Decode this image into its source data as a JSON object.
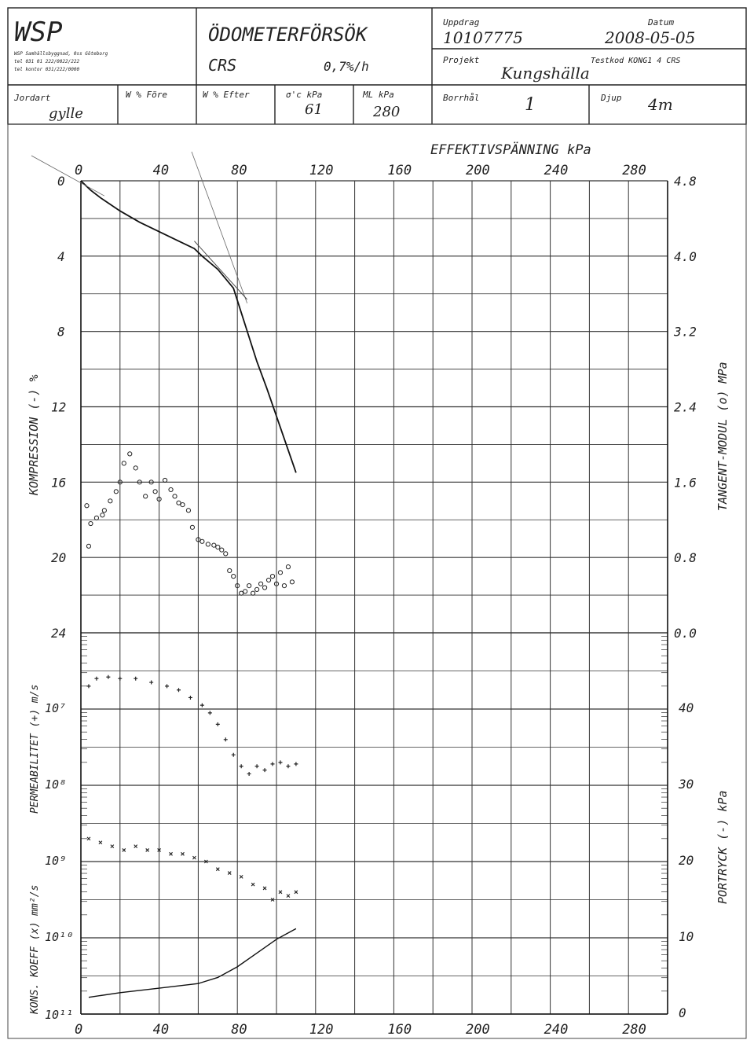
{
  "header": {
    "company": "WSP",
    "company_address": [
      "WSP Samhällsbyggnad, 0ss Göteborg",
      "tel 031 01 222/0022/222",
      "tel kontor 031/222/0000"
    ],
    "title": "ÖDOMETERFÖRSÖK",
    "method": "CRS",
    "rate": "0,7%/h",
    "uppdrag_label": "Uppdrag",
    "uppdrag_value": "10107775",
    "datum_label": "Datum",
    "datum_value": "2008-05-05",
    "projekt_label": "Projekt",
    "projekt_value": "Kungshälla",
    "testkod_label": "Testkod KONG1 4 CRS",
    "jordart_label": "Jordart",
    "jordart_value": "gylle",
    "w_fore_label": "W % Före",
    "w_efter_label": "W % Efter",
    "sigma_label": "σ'c  kPa",
    "sigma_value": "61",
    "ml_label": "ML  kPa",
    "ml_value": "280",
    "borrhal_label": "Borrhål",
    "borrhal_value": "1",
    "djup_label": "Djup",
    "djup_value": "4m"
  },
  "chart_data": {
    "type": "line",
    "top_axis_title": "EFFEKTIVSPÄNNING kPa",
    "x_ticks": [
      "0",
      "40",
      "80",
      "120",
      "160",
      "200",
      "240",
      "280"
    ],
    "xlim": [
      0,
      300
    ],
    "left_axis_compression_label": "KOMPRESSION (-) %",
    "left_compression_ticks": [
      "0",
      "4",
      "8",
      "12",
      "16",
      "20",
      "24"
    ],
    "right_axis_modulus_label": "TANGENT-MODUL (o) MPa",
    "right_modulus_ticks": [
      "4.8",
      "4.0",
      "3.2",
      "2.4",
      "1.6",
      "0.8",
      "0.0"
    ],
    "left_axis_permeability_label": "PERMEABILITET (+) m/s",
    "left_axis_consolidation_label": "KONS. KOEFF (x) mm²/s",
    "left_log_ticks": [
      "10⁷",
      "10⁸",
      "10⁹",
      "10¹⁰",
      "10¹¹"
    ],
    "right_axis_pore_label": "PORTRYCK (-) kPa",
    "right_pore_ticks": [
      "40",
      "30",
      "20",
      "10",
      "0"
    ],
    "series": [
      {
        "name": "compression",
        "x": [
          0,
          2,
          5,
          10,
          20,
          30,
          40,
          50,
          58,
          62,
          70,
          78,
          82,
          86,
          90,
          95,
          100,
          105,
          110
        ],
        "y": [
          0,
          0.2,
          0.5,
          0.9,
          1.6,
          2.2,
          2.7,
          3.2,
          3.6,
          4.0,
          4.7,
          5.7,
          7.0,
          8.3,
          9.6,
          11.0,
          12.5,
          14.0,
          15.5
        ]
      },
      {
        "name": "modulus",
        "x": [
          3,
          4,
          5,
          8,
          11,
          12,
          15,
          18,
          20,
          22,
          25,
          28,
          30,
          33,
          36,
          38,
          40,
          43,
          46,
          48,
          50,
          52,
          55,
          57,
          60,
          62,
          65,
          68,
          70,
          72,
          74,
          76,
          78,
          80,
          82,
          84,
          86,
          88,
          90,
          92,
          94,
          96,
          98,
          100,
          102,
          104,
          106,
          108
        ],
        "y": [
          1.35,
          0.92,
          1.16,
          1.22,
          1.25,
          1.3,
          1.4,
          1.5,
          1.6,
          1.8,
          1.9,
          1.75,
          1.6,
          1.45,
          1.6,
          1.5,
          1.42,
          1.62,
          1.52,
          1.45,
          1.38,
          1.36,
          1.3,
          1.12,
          0.99,
          0.97,
          0.94,
          0.93,
          0.91,
          0.88,
          0.84,
          0.66,
          0.6,
          0.5,
          0.42,
          0.44,
          0.5,
          0.42,
          0.46,
          0.52,
          0.48,
          0.56,
          0.6,
          0.52,
          0.64,
          0.5,
          0.7,
          0.54
        ]
      },
      {
        "name": "permeability",
        "x": [
          4,
          8,
          14,
          20,
          28,
          36,
          44,
          50,
          56,
          62,
          66,
          70,
          74,
          78,
          82,
          86,
          90,
          94,
          98,
          102,
          106,
          110
        ],
        "y": [
          -6.7,
          -6.6,
          -6.58,
          -6.6,
          -6.6,
          -6.65,
          -6.7,
          -6.75,
          -6.85,
          -6.95,
          -7.05,
          -7.2,
          -7.4,
          -7.6,
          -7.75,
          -7.85,
          -7.75,
          -7.8,
          -7.72,
          -7.7,
          -7.75,
          -7.72
        ]
      },
      {
        "name": "consolidation",
        "x": [
          4,
          10,
          16,
          22,
          28,
          34,
          40,
          46,
          52,
          58,
          64,
          70,
          76,
          82,
          88,
          94,
          98,
          102,
          106,
          110
        ],
        "y": [
          -8.7,
          -8.75,
          -8.8,
          -8.85,
          -8.8,
          -8.85,
          -8.85,
          -8.9,
          -8.9,
          -8.95,
          -9.0,
          -9.1,
          -9.15,
          -9.2,
          -9.3,
          -9.35,
          -9.5,
          -9.4,
          -9.45,
          -9.4
        ]
      },
      {
        "name": "pore_pressure",
        "x": [
          4,
          20,
          40,
          60,
          70,
          80,
          90,
          100,
          105,
          110
        ],
        "y": [
          2.2,
          2.8,
          3.4,
          4.0,
          4.8,
          6.2,
          8.0,
          9.8,
          10.5,
          11.2
        ]
      }
    ]
  }
}
